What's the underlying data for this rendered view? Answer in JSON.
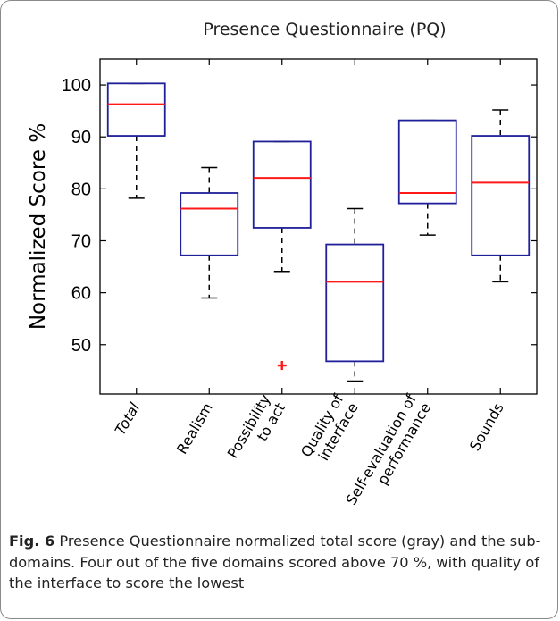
{
  "chart_data": {
    "type": "box",
    "title": "Presence Questionnaire (PQ)",
    "ylabel": "Normalized Score %",
    "xlabel": "",
    "ylim": [
      40.5,
      105
    ],
    "yticks": [
      50,
      60,
      70,
      80,
      90,
      100
    ],
    "grid": false,
    "categories": [
      "Total",
      "Realism",
      "Possibility\nto act",
      "Quality of\ninterface",
      "Self-evaluation of\nperformance",
      "Sounds"
    ],
    "boxes": [
      {
        "category": "Total",
        "q1": 90.2,
        "median": 96.3,
        "q3": 100.3,
        "whisker_low": 78.2,
        "whisker_high": 100.3,
        "outliers": []
      },
      {
        "category": "Realism",
        "q1": 67.2,
        "median": 76.2,
        "q3": 79.2,
        "whisker_low": 59.0,
        "whisker_high": 84.1,
        "outliers": []
      },
      {
        "category": "Possibility to act",
        "q1": 72.5,
        "median": 82.1,
        "q3": 89.1,
        "whisker_low": 64.1,
        "whisker_high": 89.1,
        "outliers": [
          46.0
        ]
      },
      {
        "category": "Quality of interface",
        "q1": 46.8,
        "median": 62.1,
        "q3": 69.3,
        "whisker_low": 43.0,
        "whisker_high": 76.2,
        "outliers": []
      },
      {
        "category": "Self-evaluation of performance",
        "q1": 77.2,
        "median": 79.2,
        "q3": 93.2,
        "whisker_low": 71.1,
        "whisker_high": 93.2,
        "outliers": []
      },
      {
        "category": "Sounds",
        "q1": 67.2,
        "median": 81.2,
        "q3": 90.2,
        "whisker_low": 62.1,
        "whisker_high": 95.2,
        "outliers": []
      }
    ],
    "colors": {
      "box": "#1f1f9a",
      "median": "#ff1a1a",
      "whisker": "#000000",
      "outlier": "#ff1a1a"
    }
  },
  "caption": {
    "label": "Fig. 6",
    "text": "Presence Questionnaire normalized total score (gray) and the sub-domains. Four out of the five domains scored above 70 %, with quality of the interface to score the lowest"
  }
}
